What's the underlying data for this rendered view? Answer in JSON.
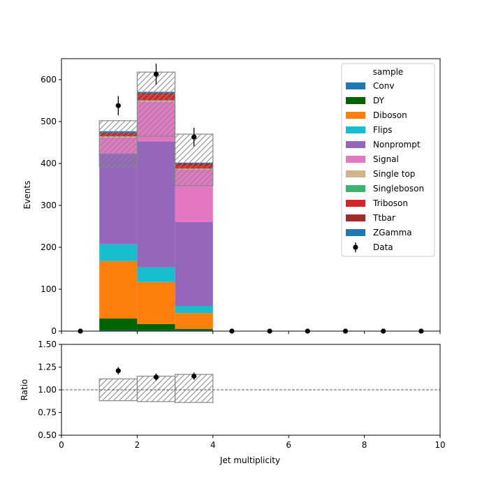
{
  "chart_data": [
    {
      "type": "bar",
      "subtype": "stacked-histogram",
      "title": "",
      "xlabel": "",
      "ylabel": "Events",
      "xlim": [
        0,
        10
      ],
      "ylim": [
        0,
        650
      ],
      "xticks": [
        0,
        2,
        4,
        6,
        8,
        10
      ],
      "yticks": [
        0,
        100,
        200,
        300,
        400,
        500,
        600
      ],
      "grid": false,
      "bin_edges": [
        0,
        1,
        2,
        3,
        4,
        5,
        6,
        7,
        8,
        9,
        10
      ],
      "categories": [
        "0-1",
        "1-2",
        "2-3",
        "3-4",
        "4-5",
        "5-6",
        "6-7",
        "7-8",
        "8-9",
        "9-10"
      ],
      "legend": {
        "title": "sample",
        "placement": "top-right"
      },
      "series": [
        {
          "name": "Conv",
          "color": "#1f77b4",
          "values": [
            0,
            2,
            2,
            2,
            0,
            0,
            0,
            0,
            0,
            0
          ]
        },
        {
          "name": "DY",
          "color": "#006400",
          "values": [
            0,
            28,
            15,
            3,
            0,
            0,
            0,
            0,
            0,
            0
          ]
        },
        {
          "name": "Diboson",
          "color": "#ff7f0e",
          "values": [
            0,
            137,
            100,
            38,
            0,
            0,
            0,
            0,
            0,
            0
          ]
        },
        {
          "name": "Flips",
          "color": "#17becf",
          "values": [
            0,
            40,
            35,
            17,
            0,
            0,
            0,
            0,
            0,
            0
          ]
        },
        {
          "name": "Nonprompt",
          "color": "#9467bd",
          "values": [
            0,
            217,
            301,
            200,
            0,
            0,
            0,
            0,
            0,
            0
          ]
        },
        {
          "name": "Signal",
          "color": "#e377c2",
          "values": [
            0,
            38,
            95,
            125,
            0,
            0,
            0,
            0,
            0,
            0
          ]
        },
        {
          "name": "Single top",
          "color": "#d2b48c",
          "values": [
            0,
            2,
            2,
            2,
            0,
            0,
            0,
            0,
            0,
            0
          ]
        },
        {
          "name": "Singleboson",
          "color": "#3cb371",
          "values": [
            0,
            1,
            1,
            1,
            0,
            0,
            0,
            0,
            0,
            0
          ]
        },
        {
          "name": "Triboson",
          "color": "#d62728",
          "values": [
            0,
            5,
            13,
            7,
            0,
            0,
            0,
            0,
            0,
            0
          ]
        },
        {
          "name": "Ttbar",
          "color": "#a52a2a",
          "values": [
            0,
            3,
            4,
            5,
            0,
            0,
            0,
            0,
            0,
            0
          ]
        },
        {
          "name": "ZGamma",
          "color": "#1f77b4",
          "values": [
            0,
            4,
            3,
            2,
            0,
            0,
            0,
            0,
            0,
            0
          ]
        }
      ],
      "uncertainty_band": {
        "lower": [
          0,
          392,
          465,
          347,
          0,
          0,
          0,
          0,
          0,
          0
        ],
        "upper": [
          0,
          502,
          618,
          470,
          0,
          0,
          0,
          0,
          0,
          0
        ]
      },
      "data_points": {
        "name": "Data",
        "x": [
          0.5,
          1.5,
          2.5,
          3.5,
          4.5,
          5.5,
          6.5,
          7.5,
          8.5,
          9.5
        ],
        "y": [
          0,
          538,
          613,
          463,
          0,
          0,
          0,
          0,
          0,
          0
        ],
        "yerr": [
          0,
          23,
          25,
          22,
          0,
          0,
          0,
          0,
          0,
          0
        ]
      }
    },
    {
      "type": "scatter",
      "subtype": "ratio-panel",
      "title": "",
      "xlabel": "Jet multiplicity",
      "ylabel": "Ratio",
      "xlim": [
        0,
        10
      ],
      "ylim": [
        0.5,
        1.5
      ],
      "xticks": [
        0,
        2,
        4,
        6,
        8,
        10
      ],
      "yticks": [
        0.5,
        0.75,
        1.0,
        1.25,
        1.5
      ],
      "ytick_labels": [
        "0.50",
        "0.75",
        "1.00",
        "1.25",
        "1.50"
      ],
      "grid": false,
      "reference_line": 1.0,
      "points": {
        "x": [
          1.5,
          2.5,
          3.5
        ],
        "y": [
          1.21,
          1.14,
          1.15
        ],
        "yerr": [
          0.04,
          0.04,
          0.04
        ]
      },
      "uncertainty_band": {
        "lower": [
          1,
          0.88,
          0.87,
          0.86,
          1,
          1,
          1,
          1,
          1,
          1
        ],
        "upper": [
          1,
          1.12,
          1.15,
          1.17,
          1,
          1,
          1,
          1,
          1,
          1
        ]
      }
    }
  ]
}
